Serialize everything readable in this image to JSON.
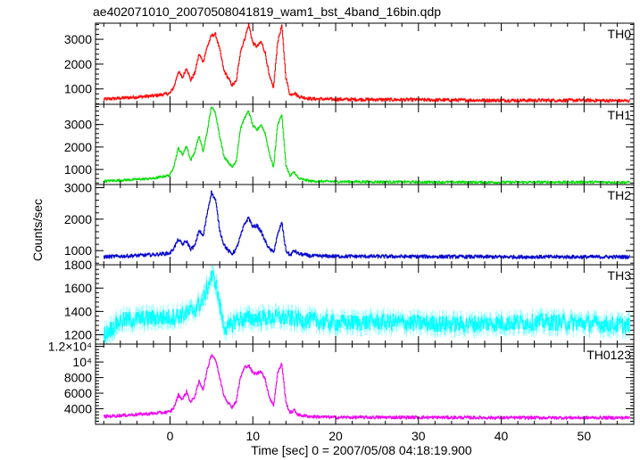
{
  "chart_data": {
    "type": "line",
    "title": "ae402071010_20070508041819_wam1_bst_4band_16bin.qdp",
    "xlabel": "Time [sec] 0 = 2007/05/08 04:18:19.900",
    "ylabel": "Counts/sec",
    "xlim": [
      -9,
      56
    ],
    "x_ticks": [
      0,
      10,
      20,
      30,
      40,
      50
    ],
    "x_tick_labels": [
      "0",
      "10",
      "20",
      "30",
      "40",
      "50"
    ],
    "grid": false,
    "legend": "none",
    "panels": [
      {
        "name": "TH0",
        "color": "#ff0000",
        "ylim": [
          380,
          3650
        ],
        "yticks": [
          1000,
          2000,
          3000
        ],
        "ytick_labels": [
          "1000",
          "2000",
          "3000"
        ],
        "keypoints": [
          [
            -8,
            580
          ],
          [
            -5,
            650
          ],
          [
            -2,
            720
          ],
          [
            0,
            820
          ],
          [
            0.5,
            1100
          ],
          [
            1,
            1700
          ],
          [
            1.5,
            1450
          ],
          [
            2,
            1850
          ],
          [
            2.5,
            1350
          ],
          [
            3,
            1650
          ],
          [
            3.5,
            2400
          ],
          [
            4,
            2100
          ],
          [
            4.5,
            2700
          ],
          [
            5,
            3150
          ],
          [
            5.5,
            3200
          ],
          [
            6,
            2600
          ],
          [
            6.5,
            1750
          ],
          [
            7,
            1450
          ],
          [
            7.5,
            1150
          ],
          [
            8,
            1300
          ],
          [
            8.5,
            2500
          ],
          [
            9,
            3000
          ],
          [
            9.5,
            3600
          ],
          [
            10,
            2850
          ],
          [
            10.5,
            2700
          ],
          [
            11,
            2900
          ],
          [
            11.5,
            2450
          ],
          [
            12,
            1500
          ],
          [
            12.5,
            1050
          ],
          [
            13,
            2900
          ],
          [
            13.5,
            3550
          ],
          [
            14,
            1450
          ],
          [
            14.5,
            750
          ],
          [
            15,
            850
          ],
          [
            15.5,
            700
          ],
          [
            17,
            600
          ],
          [
            20,
            580
          ],
          [
            30,
            560
          ],
          [
            40,
            540
          ],
          [
            50,
            540
          ],
          [
            55,
            520
          ]
        ],
        "noise": 60
      },
      {
        "name": "TH1",
        "color": "#00dd00",
        "ylim": [
          330,
          3900
        ],
        "yticks": [
          1000,
          2000,
          3000
        ],
        "ytick_labels": [
          "1000",
          "2000",
          "3000"
        ],
        "keypoints": [
          [
            -8,
            480
          ],
          [
            -5,
            540
          ],
          [
            -2,
            600
          ],
          [
            0,
            750
          ],
          [
            0.5,
            1200
          ],
          [
            1,
            1950
          ],
          [
            1.5,
            1650
          ],
          [
            2,
            2050
          ],
          [
            2.5,
            1400
          ],
          [
            3,
            1800
          ],
          [
            3.5,
            2500
          ],
          [
            4,
            1800
          ],
          [
            4.5,
            2700
          ],
          [
            5,
            3800
          ],
          [
            5.5,
            3500
          ],
          [
            6,
            2500
          ],
          [
            6.5,
            1600
          ],
          [
            7,
            1350
          ],
          [
            7.5,
            1100
          ],
          [
            8,
            1400
          ],
          [
            8.5,
            2800
          ],
          [
            9,
            3300
          ],
          [
            9.5,
            3600
          ],
          [
            10,
            2950
          ],
          [
            10.5,
            2750
          ],
          [
            11,
            3000
          ],
          [
            11.5,
            2600
          ],
          [
            12,
            1700
          ],
          [
            12.5,
            1100
          ],
          [
            13,
            3000
          ],
          [
            13.5,
            3450
          ],
          [
            14,
            1200
          ],
          [
            14.5,
            700
          ],
          [
            15,
            900
          ],
          [
            15.5,
            600
          ],
          [
            17,
            480
          ],
          [
            20,
            460
          ],
          [
            30,
            440
          ],
          [
            40,
            430
          ],
          [
            50,
            440
          ],
          [
            55,
            430
          ]
        ],
        "noise": 50
      },
      {
        "name": "TH2",
        "color": "#0000cc",
        "ylim": [
          550,
          3100
        ],
        "yticks": [
          1000,
          2000,
          3000
        ],
        "ytick_labels": [
          "1000",
          "2000",
          "3000"
        ],
        "keypoints": [
          [
            -8,
            800
          ],
          [
            -5,
            830
          ],
          [
            -2,
            870
          ],
          [
            0,
            920
          ],
          [
            0.5,
            1100
          ],
          [
            1,
            1350
          ],
          [
            1.5,
            1200
          ],
          [
            2,
            1300
          ],
          [
            2.5,
            1050
          ],
          [
            3,
            1150
          ],
          [
            3.5,
            1650
          ],
          [
            4,
            1450
          ],
          [
            4.5,
            2200
          ],
          [
            5,
            2850
          ],
          [
            5.5,
            2600
          ],
          [
            6,
            1650
          ],
          [
            6.5,
            1200
          ],
          [
            7,
            1000
          ],
          [
            7.5,
            900
          ],
          [
            8,
            1050
          ],
          [
            8.5,
            1450
          ],
          [
            9,
            1850
          ],
          [
            9.5,
            2050
          ],
          [
            10,
            1750
          ],
          [
            10.5,
            1800
          ],
          [
            11,
            1600
          ],
          [
            11.5,
            1300
          ],
          [
            12,
            1050
          ],
          [
            12.5,
            950
          ],
          [
            13,
            1500
          ],
          [
            13.5,
            1900
          ],
          [
            14,
            1000
          ],
          [
            14.5,
            850
          ],
          [
            15,
            1000
          ],
          [
            15.5,
            900
          ],
          [
            17,
            830
          ],
          [
            20,
            820
          ],
          [
            30,
            810
          ],
          [
            40,
            800
          ],
          [
            50,
            800
          ],
          [
            55,
            800
          ]
        ],
        "noise": 50
      },
      {
        "name": "TH3",
        "color": "#00ffff",
        "ylim": [
          1120,
          1800
        ],
        "yticks": [
          1200,
          1400,
          1600,
          1800
        ],
        "ytick_labels": [
          "1200",
          "1400",
          "1600",
          "1800"
        ],
        "keypoints": [
          [
            -8,
            1200
          ],
          [
            -6,
            1320
          ],
          [
            -3,
            1340
          ],
          [
            0,
            1350
          ],
          [
            2,
            1380
          ],
          [
            3,
            1420
          ],
          [
            4,
            1500
          ],
          [
            4.5,
            1600
          ],
          [
            5,
            1700
          ],
          [
            5.5,
            1660
          ],
          [
            6,
            1450
          ],
          [
            6.5,
            1280
          ],
          [
            7,
            1250
          ],
          [
            8,
            1330
          ],
          [
            10,
            1340
          ],
          [
            13,
            1350
          ],
          [
            16,
            1330
          ],
          [
            20,
            1300
          ],
          [
            25,
            1310
          ],
          [
            30,
            1300
          ],
          [
            35,
            1290
          ],
          [
            40,
            1300
          ],
          [
            45,
            1310
          ],
          [
            50,
            1300
          ],
          [
            55,
            1280
          ]
        ],
        "noise": 70
      },
      {
        "name": "TH0123",
        "color": "#ee00ee",
        "ylim": [
          2000,
          12300
        ],
        "yticks": [
          4000,
          6000,
          8000,
          10000,
          12000
        ],
        "ytick_labels": [
          "4000",
          "6000",
          "8000",
          "10⁴",
          "1.2×10⁴"
        ],
        "keypoints": [
          [
            -8,
            3000
          ],
          [
            -5,
            3200
          ],
          [
            -2,
            3400
          ],
          [
            0,
            3600
          ],
          [
            0.5,
            4200
          ],
          [
            1,
            5800
          ],
          [
            1.5,
            5200
          ],
          [
            2,
            6200
          ],
          [
            2.5,
            4800
          ],
          [
            3,
            5600
          ],
          [
            3.5,
            7500
          ],
          [
            4,
            6500
          ],
          [
            4.5,
            9000
          ],
          [
            5,
            11000
          ],
          [
            5.5,
            10300
          ],
          [
            6,
            8000
          ],
          [
            6.5,
            5800
          ],
          [
            7,
            4800
          ],
          [
            7.5,
            4200
          ],
          [
            8,
            5000
          ],
          [
            8.5,
            8000
          ],
          [
            9,
            9300
          ],
          [
            9.5,
            9600
          ],
          [
            10,
            8600
          ],
          [
            10.5,
            8500
          ],
          [
            11,
            8900
          ],
          [
            11.5,
            7700
          ],
          [
            12,
            5500
          ],
          [
            12.5,
            4400
          ],
          [
            13,
            8600
          ],
          [
            13.5,
            9800
          ],
          [
            14,
            4800
          ],
          [
            14.5,
            3500
          ],
          [
            15,
            3800
          ],
          [
            15.5,
            3200
          ],
          [
            17,
            3000
          ],
          [
            20,
            2900
          ],
          [
            30,
            2900
          ],
          [
            40,
            2850
          ],
          [
            50,
            2850
          ],
          [
            55,
            2850
          ]
        ],
        "noise": 180
      }
    ]
  }
}
